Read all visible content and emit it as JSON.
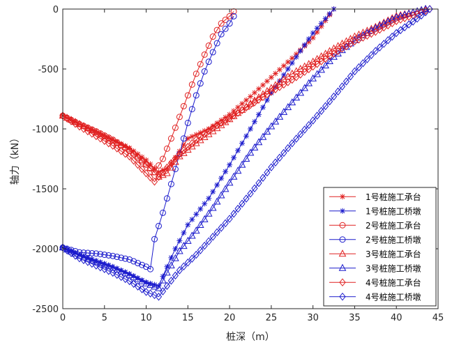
{
  "chart_data": {
    "type": "line",
    "xlabel": "桩深（m）",
    "ylabel": "轴力（kN）",
    "xlim": [
      0,
      45
    ],
    "ylim": [
      -2500,
      0
    ],
    "xticks": [
      0,
      5,
      10,
      15,
      20,
      25,
      30,
      35,
      40,
      45
    ],
    "yticks": [
      0,
      -500,
      -1000,
      -1500,
      -2000,
      -2500
    ],
    "grid": false,
    "legend_position": "bottom-right",
    "series": [
      {
        "name": "1号桩施工承台",
        "color": "#e02020",
        "marker": "asterisk",
        "x": [
          0,
          2,
          4,
          6,
          8,
          10,
          11.5,
          12.5,
          13.5,
          15,
          17.5,
          20,
          22.5,
          25,
          27.5,
          30,
          32.5
        ],
        "y": [
          -890,
          -960,
          -1020,
          -1090,
          -1160,
          -1260,
          -1360,
          -1330,
          -1240,
          -1080,
          -1000,
          -880,
          -730,
          -570,
          -410,
          -240,
          0
        ]
      },
      {
        "name": "1号桩施工桥墩",
        "color": "#1a1acc",
        "marker": "asterisk",
        "x": [
          0,
          2,
          4,
          6,
          8,
          10,
          11.5,
          12.5,
          13.5,
          15,
          17.5,
          20,
          22.5,
          25,
          27.5,
          30,
          32.5
        ],
        "y": [
          -1990,
          -2050,
          -2100,
          -2150,
          -2210,
          -2280,
          -2310,
          -2150,
          -2000,
          -1800,
          -1580,
          -1300,
          -1000,
          -700,
          -450,
          -200,
          0
        ]
      },
      {
        "name": "2号桩施工承台",
        "color": "#e02020",
        "marker": "circle",
        "x": [
          0,
          2,
          4,
          6,
          8,
          10,
          11,
          12,
          13,
          14,
          15,
          16,
          17,
          18,
          19,
          20,
          20.5
        ],
        "y": [
          -890,
          -960,
          -1020,
          -1090,
          -1180,
          -1300,
          -1360,
          -1250,
          -1080,
          -900,
          -720,
          -540,
          -380,
          -230,
          -120,
          -60,
          -20
        ]
      },
      {
        "name": "2号桩施工桥墩",
        "color": "#1a1acc",
        "marker": "circle",
        "x": [
          0,
          2,
          4,
          6,
          8,
          10,
          10.5,
          11,
          12,
          13,
          14,
          15,
          16,
          17,
          18,
          19,
          20,
          20.5
        ],
        "y": [
          -1990,
          -2030,
          -2040,
          -2060,
          -2090,
          -2150,
          -2170,
          -1920,
          -1700,
          -1460,
          -1210,
          -950,
          -720,
          -520,
          -360,
          -210,
          -120,
          -60
        ]
      },
      {
        "name": "3号桩施工承台",
        "color": "#e02020",
        "marker": "triangle",
        "x": [
          0,
          2,
          4,
          6,
          8,
          10,
          11.5,
          12.5,
          14,
          16,
          18,
          20,
          22.5,
          25,
          27.5,
          30,
          32.5,
          35,
          37.5,
          40,
          42.5,
          43.5
        ],
        "y": [
          -890,
          -960,
          -1030,
          -1100,
          -1170,
          -1290,
          -1400,
          -1370,
          -1230,
          -1120,
          -1020,
          -920,
          -790,
          -660,
          -540,
          -440,
          -330,
          -230,
          -150,
          -60,
          -20,
          0
        ]
      },
      {
        "name": "3号桩施工桥墩",
        "color": "#1a1acc",
        "marker": "triangle",
        "x": [
          0,
          2,
          4,
          6,
          8,
          10,
          11.5,
          12.5,
          14,
          16,
          18,
          20,
          22.5,
          25,
          27.5,
          30,
          32.5,
          35,
          37.5,
          40,
          42.5,
          43.5
        ],
        "y": [
          -1990,
          -2060,
          -2110,
          -2160,
          -2220,
          -2290,
          -2330,
          -2200,
          -2020,
          -1850,
          -1660,
          -1450,
          -1200,
          -980,
          -780,
          -580,
          -400,
          -260,
          -160,
          -70,
          -20,
          0
        ]
      },
      {
        "name": "4号桩施工承台",
        "color": "#e02020",
        "marker": "diamond",
        "x": [
          0,
          2,
          4,
          6,
          8,
          10,
          11,
          12,
          14,
          16,
          18,
          20,
          22.5,
          25,
          27.5,
          30,
          32.5,
          35,
          37.5,
          40,
          42.5,
          44
        ],
        "y": [
          -890,
          -980,
          -1060,
          -1140,
          -1230,
          -1370,
          -1440,
          -1360,
          -1210,
          -1090,
          -990,
          -910,
          -800,
          -690,
          -590,
          -480,
          -370,
          -270,
          -190,
          -100,
          -40,
          0
        ]
      },
      {
        "name": "4号桩施工桥墩",
        "color": "#1a1acc",
        "marker": "diamond",
        "x": [
          0,
          2,
          4,
          6,
          8,
          10,
          11.5,
          12.5,
          14,
          16,
          18,
          20,
          22.5,
          25,
          27.5,
          30,
          32.5,
          35,
          37.5,
          40,
          42.5,
          44
        ],
        "y": [
          -1990,
          -2080,
          -2140,
          -2200,
          -2270,
          -2360,
          -2400,
          -2310,
          -2180,
          -2050,
          -1900,
          -1750,
          -1540,
          -1320,
          -1120,
          -930,
          -730,
          -520,
          -350,
          -200,
          -80,
          0
        ]
      }
    ]
  }
}
